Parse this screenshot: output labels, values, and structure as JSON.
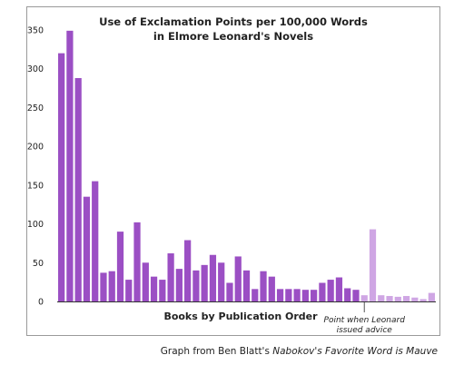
{
  "chart_data": {
    "type": "bar",
    "title_line1": "Use of Exclamation Points per 100,000 Words",
    "title_line2": "in Elmore Leonard's Novels",
    "xlabel": "Books by Publication Order",
    "ylabel": "",
    "ylim": [
      0,
      350
    ],
    "yticks": [
      0,
      50,
      100,
      150,
      200,
      250,
      300,
      350
    ],
    "grid": false,
    "annotation_line1": "Point when Leonard",
    "annotation_line2": "issued advice",
    "advice_index": 37,
    "colors": {
      "before": "#9b4fc4",
      "after": "#cfa6e4"
    },
    "values": [
      320,
      349,
      288,
      135,
      155,
      37,
      39,
      90,
      28,
      102,
      50,
      32,
      28,
      62,
      42,
      79,
      40,
      47,
      60,
      50,
      24,
      58,
      40,
      16,
      39,
      32,
      16,
      16,
      16,
      15,
      15,
      24,
      28,
      31,
      17,
      15,
      8,
      93,
      8,
      7,
      6,
      7,
      5,
      3,
      11
    ]
  },
  "credit": {
    "prefix": "Graph from Ben Blatt's ",
    "book": "Nabokov's Favorite Word is Mauve"
  }
}
